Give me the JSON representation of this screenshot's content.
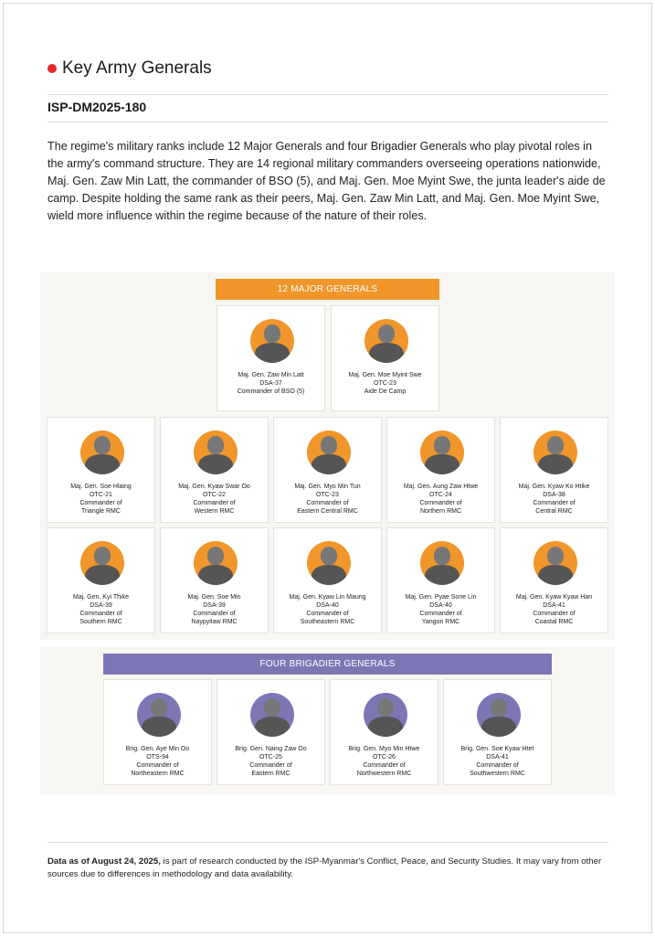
{
  "title": "Key Army Generals",
  "code": "ISP-DM2025-180",
  "paragraph": "The regime's military ranks include 12 Major Generals and four Brigadier Generals who play pivotal roles in the army's command structure. They are 14 regional military commanders overseeing operations nationwide, Maj. Gen. Zaw Min Latt, the commander of BSO (5), and Maj. Gen. Moe Myint Swe, the junta leader's aide de camp. Despite holding the same rank as their peers, Maj. Gen. Zaw Min Latt, and Maj. Gen. Moe Myint Swe, wield more influence within the regime because of the nature of their roles.",
  "colors": {
    "accent_red": "#e8262b",
    "major": "#f0962a",
    "brigadier": "#7d76b5"
  },
  "major": {
    "label": "12 MAJOR GENERALS",
    "generals": [
      {
        "name": "Maj. Gen. Zaw Min Latt",
        "batch": "DSA-37",
        "role": [
          "Commander of BSO (5)"
        ]
      },
      {
        "name": "Maj. Gen. Moe Myint Swe",
        "batch": "OTC-23",
        "role": [
          "Aide De Camp"
        ]
      },
      {
        "name": "Maj. Gen. Soe Hlaing",
        "batch": "OTC-21",
        "role": [
          "Commander of",
          "Triangle RMC"
        ]
      },
      {
        "name": "Maj. Gen. Kyaw Swar Oo",
        "batch": "OTC-22",
        "role": [
          "Commander of",
          "Western RMC"
        ]
      },
      {
        "name": "Maj. Gen. Myo Min Tun",
        "batch": "OTC-23",
        "role": [
          "Commander of",
          "Eastern Central RMC"
        ]
      },
      {
        "name": "Maj. Gen. Aung Zaw Htwe",
        "batch": "OTC-24",
        "role": [
          "Commander of",
          "Northern RMC"
        ]
      },
      {
        "name": "Maj. Gen. Kyaw Ko Htike",
        "batch": "DSA-38",
        "role": [
          "Commander of",
          "Central RMC"
        ]
      },
      {
        "name": "Maj. Gen. Kyi Thike",
        "batch": "DSA-39",
        "role": [
          "Commander of",
          "Southern RMC"
        ]
      },
      {
        "name": "Maj. Gen. Soe Min",
        "batch": "DSA-39",
        "role": [
          "Commander of",
          "Naypyitaw RMC"
        ]
      },
      {
        "name": "Maj. Gen. Kyaw Lin Maung",
        "batch": "DSA-40",
        "role": [
          "Commander of",
          "Southeastern RMC"
        ]
      },
      {
        "name": "Maj. Gen. Pyae Sone Lin",
        "batch": "DSA-40",
        "role": [
          "Commander of",
          "Yangon RMC"
        ]
      },
      {
        "name": "Maj. Gen. Kyaw Kyaw Han",
        "batch": "DSA-41",
        "role": [
          "Commander of",
          "Coastal RMC"
        ]
      }
    ]
  },
  "brigadier": {
    "label": "FOUR BRIGADIER GENERALS",
    "generals": [
      {
        "name": "Brig. Gen. Aye Min Oo",
        "batch": "OTS-94",
        "role": [
          "Commander of",
          "Northeastern RMC"
        ]
      },
      {
        "name": "Brig. Gen. Naing Zaw Oo",
        "batch": "OTC-25",
        "role": [
          "Commander of",
          "Eastern RMC"
        ]
      },
      {
        "name": "Brig. Gen. Myo Min Htwe",
        "batch": "OTC-26",
        "role": [
          "Commander of",
          "Northwestern RMC"
        ]
      },
      {
        "name": "Brig. Gen. Soe Kyaw Htet",
        "batch": "DSA-41",
        "role": [
          "Commander of",
          "Southwestern RMC"
        ]
      }
    ]
  },
  "footer": {
    "bold": "Data as of August 24, 2025,",
    "text": " is part of research conducted by the ISP-Myanmar's Conflict, Peace, and Security Studies. It may vary from other sources due to differences in methodology and data availability."
  }
}
